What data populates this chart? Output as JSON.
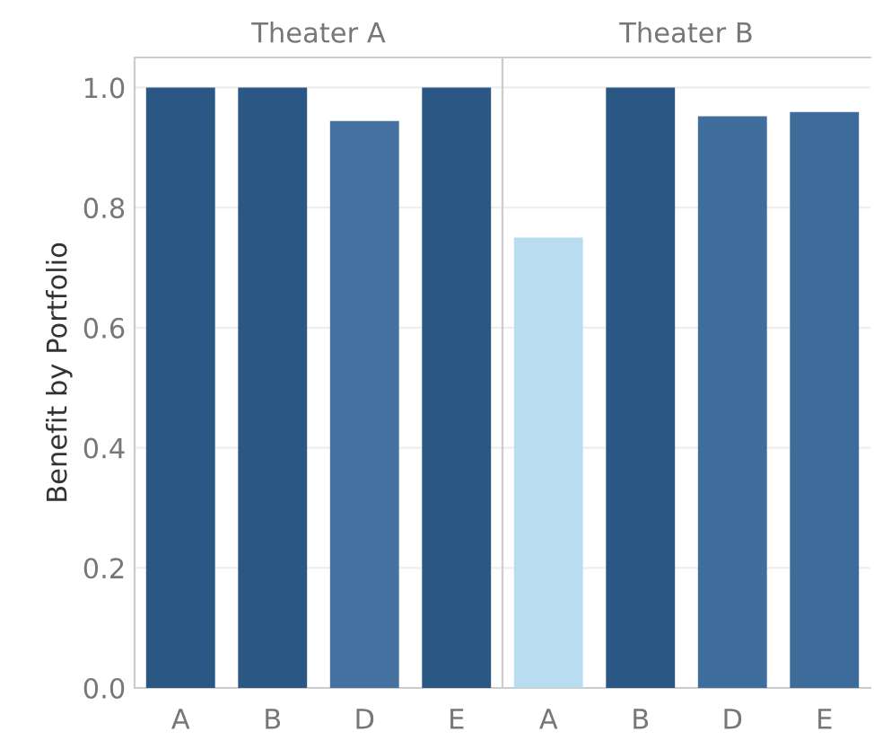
{
  "chart_data": [
    {
      "type": "bar",
      "title": "Theater A",
      "ylabel": "Benefit by Portfolio",
      "categories": [
        "A",
        "B",
        "D",
        "E"
      ],
      "values": [
        1.0,
        1.0,
        0.944,
        1.0
      ],
      "colors": [
        "#2a5783",
        "#2a5783",
        "#4672a1",
        "#2a5783"
      ],
      "ylim": [
        0,
        1.05
      ],
      "yticks": [
        {
          "value": 0,
          "label": "0.0"
        },
        0.2,
        0.4,
        0.6,
        0.8,
        {
          "value": 1,
          "label": "1.0"
        }
      ],
      "grid": "y"
    },
    {
      "type": "bar",
      "title": "Theater B",
      "categories": [
        "A",
        "B",
        "D",
        "E"
      ],
      "values": [
        0.75,
        1.0,
        0.952,
        0.959
      ],
      "colors": [
        "#b9ddf0",
        "#2a5783",
        "#3f6d9c",
        "#3d6b9a"
      ],
      "ylim": [
        0,
        1.05
      ],
      "yticks": [
        0,
        0.2,
        0.4,
        0.6,
        0.8,
        1
      ],
      "grid": "y",
      "tick_labels": "x"
    }
  ]
}
